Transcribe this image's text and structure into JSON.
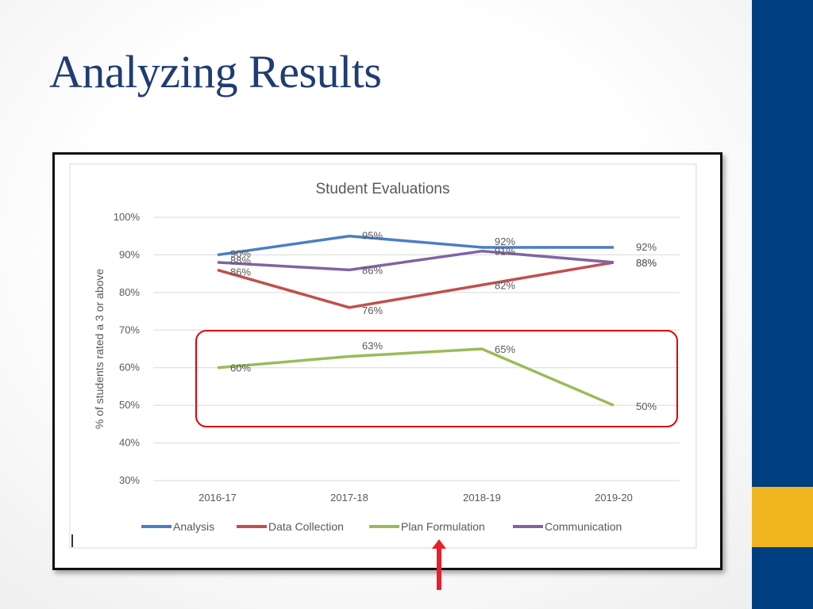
{
  "slide": {
    "title": "Analyzing Results"
  },
  "theme": {
    "sidebar_blue": "#003f7f",
    "sidebar_gold": "#f0b51e",
    "highlight_box": "#e00000",
    "arrow": "#e8202a"
  },
  "chart_data": {
    "type": "line",
    "title": "Student Evaluations",
    "xlabel": "",
    "ylabel": "% of students rated a 3 or above",
    "categories": [
      "2016-17",
      "2017-18",
      "2018-19",
      "2019-20"
    ],
    "ylim": [
      30,
      100
    ],
    "yticks": [
      100,
      90,
      80,
      70,
      60,
      50,
      40,
      30
    ],
    "ytick_labels": [
      "100%",
      "90%",
      "80%",
      "70%",
      "60%",
      "50%",
      "40%",
      "30%"
    ],
    "grid": true,
    "legend_position": "bottom",
    "series": [
      {
        "name": "Analysis",
        "color": "#4a7ec4",
        "values": [
          90,
          95,
          92,
          92
        ],
        "labels": [
          "90%",
          "95%",
          "92%",
          "92%"
        ]
      },
      {
        "name": "Data Collection",
        "color": "#c0504d",
        "values": [
          86,
          76,
          82,
          88
        ],
        "labels": [
          "86%",
          "76%",
          "82%",
          "88%"
        ]
      },
      {
        "name": "Plan Formulation",
        "color": "#9bbb59",
        "values": [
          60,
          63,
          65,
          50
        ],
        "labels": [
          "60%",
          "63%",
          "65%",
          "50%"
        ]
      },
      {
        "name": "Communication",
        "color": "#8064a2",
        "values": [
          88,
          86,
          91,
          88
        ],
        "labels": [
          "88%",
          "86%",
          "91%",
          "88%"
        ]
      }
    ],
    "highlighted_series": "Plan Formulation"
  }
}
